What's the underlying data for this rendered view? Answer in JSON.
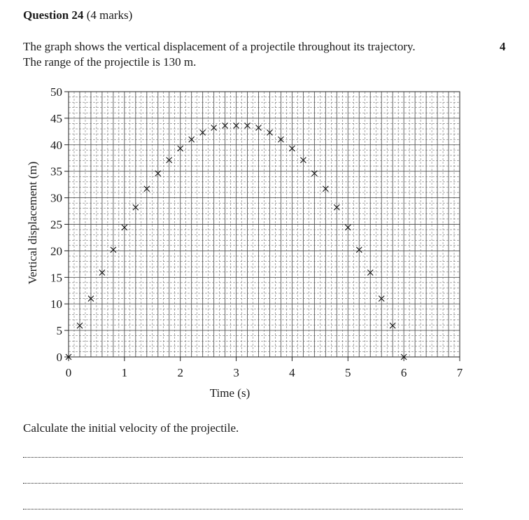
{
  "question": {
    "number_label": "Question 24",
    "marks_label": "(4 marks)",
    "stem_lines": [
      "The graph shows the vertical displacement of a projectile throughout its trajectory.",
      "The range of the projectile is 130 m."
    ],
    "margin_marks": "4",
    "prompt": "Calculate the initial velocity of the projectile."
  },
  "chart_data": {
    "type": "scatter",
    "xlabel": "Time (s)",
    "ylabel": "Vertical displacement (m)",
    "xlim": [
      0,
      7
    ],
    "ylim": [
      0,
      50
    ],
    "x_ticks": [
      0,
      1,
      2,
      3,
      4,
      5,
      6,
      7
    ],
    "y_ticks": [
      0,
      5,
      10,
      15,
      20,
      25,
      30,
      35,
      40,
      45,
      50
    ],
    "grid": true,
    "marker": "cross",
    "points": [
      {
        "x": 0.0,
        "y": 0.0
      },
      {
        "x": 0.2,
        "y": 5.9
      },
      {
        "x": 0.4,
        "y": 11.0
      },
      {
        "x": 0.6,
        "y": 15.9
      },
      {
        "x": 0.8,
        "y": 20.2
      },
      {
        "x": 1.0,
        "y": 24.4
      },
      {
        "x": 1.2,
        "y": 28.2
      },
      {
        "x": 1.4,
        "y": 31.7
      },
      {
        "x": 1.6,
        "y": 34.6
      },
      {
        "x": 1.8,
        "y": 37.1
      },
      {
        "x": 2.0,
        "y": 39.3
      },
      {
        "x": 2.2,
        "y": 41.0
      },
      {
        "x": 2.4,
        "y": 42.3
      },
      {
        "x": 2.6,
        "y": 43.2
      },
      {
        "x": 2.8,
        "y": 43.6
      },
      {
        "x": 3.0,
        "y": 43.6
      },
      {
        "x": 3.2,
        "y": 43.6
      },
      {
        "x": 3.4,
        "y": 43.2
      },
      {
        "x": 3.6,
        "y": 42.3
      },
      {
        "x": 3.8,
        "y": 41.0
      },
      {
        "x": 4.0,
        "y": 39.3
      },
      {
        "x": 4.2,
        "y": 37.1
      },
      {
        "x": 4.4,
        "y": 34.6
      },
      {
        "x": 4.6,
        "y": 31.7
      },
      {
        "x": 4.8,
        "y": 28.2
      },
      {
        "x": 5.0,
        "y": 24.4
      },
      {
        "x": 5.2,
        "y": 20.2
      },
      {
        "x": 5.4,
        "y": 15.9
      },
      {
        "x": 5.6,
        "y": 11.0
      },
      {
        "x": 5.8,
        "y": 5.9
      },
      {
        "x": 6.0,
        "y": 0.0
      }
    ]
  },
  "answer_lines": 3
}
